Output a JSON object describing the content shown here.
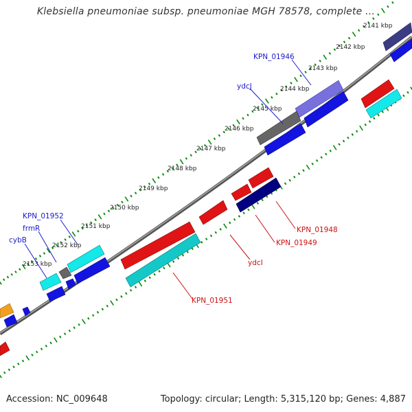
{
  "header": {
    "title": "Klebsiella pneumoniae subsp. pneumoniae MGH 78578, complete ..."
  },
  "footer": {
    "accession": "Accession: NC_009648",
    "topology": "Topology: circular; Length: 5,315,120 bp; Genes: 4,887"
  },
  "tick_labels": [
    "2141 kbp",
    "2142 kbp",
    "2143 kbp",
    "2144 kbp",
    "2145 kbp",
    "2146 kbp",
    "2147 kbp",
    "2148 kbp",
    "2149 kbp",
    "2150 kbp",
    "2151 kbp",
    "2152 kbp",
    "2153 kbp"
  ],
  "gene_labels": {
    "KPN_01946": "KPN_01946",
    "ydcJ": "ydcJ",
    "KPN_01952": "KPN_01952",
    "frmR": "frmR",
    "cybB": "cybB",
    "KPN_01948": "KPN_01948",
    "KPN_01949": "KPN_01949",
    "ydcI": "ydcI",
    "KPN_01951": "KPN_01951"
  },
  "colors": {
    "forward_cds": "#1010e0",
    "forward_alt": "#7060d8",
    "forward_dark": "#3a3a80",
    "forward_gray": "#666666",
    "forward_cyan": "#10e8e8",
    "reverse_cds": "#e01010",
    "reverse_dark": "#000080",
    "reverse_cyan": "#10c8c8",
    "orange": "#f0a020",
    "backbone": "#808080",
    "ticks": "#0a8a0a"
  }
}
